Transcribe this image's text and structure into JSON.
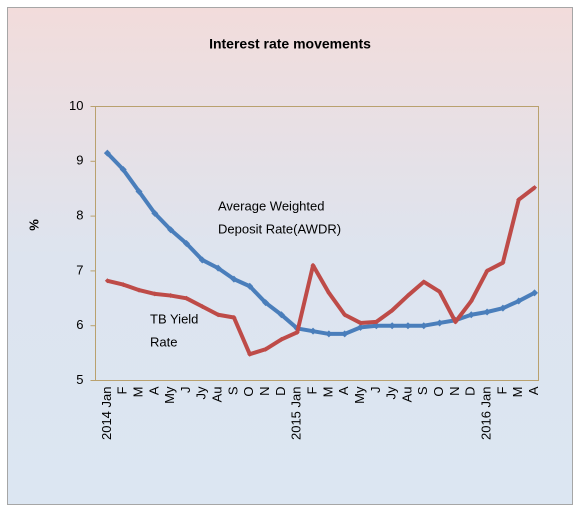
{
  "chart_data": {
    "type": "line",
    "title": "Interest rate movements",
    "y_label": "%",
    "categories": [
      "2014 Jan",
      "F",
      "M",
      "A",
      "My",
      "J",
      "Jy",
      "Au",
      "S",
      "O",
      "N",
      "D",
      "2015 Jan",
      "F",
      "M",
      "A",
      "My",
      "J",
      "Jy",
      "Au",
      "S",
      "O",
      "N",
      "D",
      "2016 Jan",
      "F",
      "M",
      "A"
    ],
    "series": [
      {
        "color": "#4a7ebb",
        "values": [
          9.15,
          8.85,
          8.45,
          8.05,
          7.75,
          7.5,
          7.2,
          7.05,
          6.85,
          6.72,
          6.42,
          6.2,
          5.95,
          5.9,
          5.85,
          5.85,
          5.97,
          6.0,
          6.0,
          6.0,
          6.0,
          6.05,
          6.1,
          6.2,
          6.25,
          6.32,
          6.45,
          6.6
        ]
      },
      {
        "color": "#be4b48",
        "values": [
          6.82,
          6.75,
          6.65,
          6.58,
          6.55,
          6.5,
          6.35,
          6.2,
          6.15,
          5.48,
          5.57,
          5.75,
          5.88,
          7.1,
          6.6,
          6.2,
          6.05,
          6.07,
          6.28,
          6.55,
          6.8,
          6.62,
          6.07,
          6.45,
          7.0,
          7.15,
          8.3,
          8.52
        ]
      }
    ],
    "annotations": [
      {
        "lines": [
          "Average Weighted",
          "Deposit Rate(AWDR)"
        ]
      },
      {
        "lines": [
          "TB Yield",
          "Rate"
        ]
      }
    ],
    "ylim": [
      5,
      10
    ],
    "yticks": [
      5,
      6,
      7,
      8,
      9,
      10
    ],
    "grid": false
  }
}
